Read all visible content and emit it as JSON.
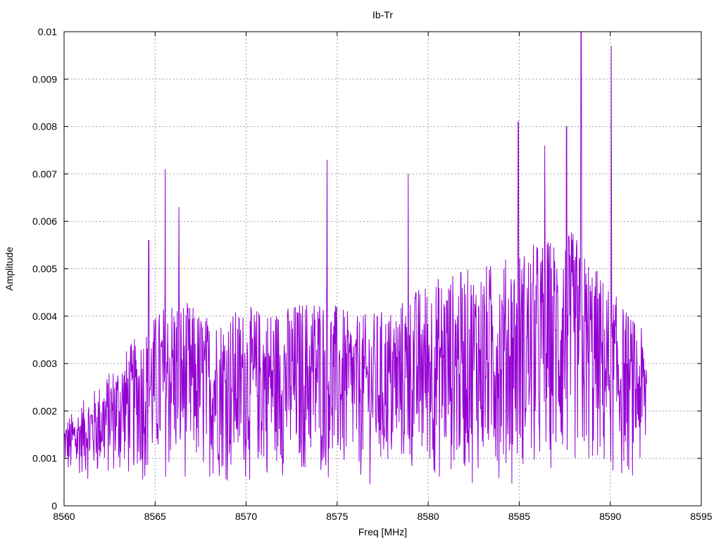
{
  "chart_data": {
    "type": "line",
    "title": "Ib-Tr",
    "xlabel": "Freq [MHz]",
    "ylabel": "Amplitude",
    "xlim": [
      8560,
      8595
    ],
    "ylim": [
      0,
      0.01
    ],
    "xticks": [
      8560,
      8565,
      8570,
      8575,
      8580,
      8585,
      8590,
      8595
    ],
    "xtick_labels": [
      "8560",
      "8565",
      "8570",
      "8575",
      "8580",
      "8585",
      "8590",
      "8595"
    ],
    "yticks": [
      0,
      0.001,
      0.002,
      0.003,
      0.004,
      0.005,
      0.006,
      0.007,
      0.008,
      0.009,
      0.01
    ],
    "ytick_labels": [
      "0",
      "0.001",
      "0.002",
      "0.003",
      "0.004",
      "0.005",
      "0.006",
      "0.007",
      "0.008",
      "0.009",
      "0.01"
    ],
    "grid": true,
    "series": [
      {
        "color": "#9400d3",
        "x_start": 8560,
        "x_end": 8592,
        "peaks": [
          {
            "x": 8564.65,
            "y": 0.0056
          },
          {
            "x": 8565.55,
            "y": 0.0071
          },
          {
            "x": 8566.3,
            "y": 0.0063
          },
          {
            "x": 8574.45,
            "y": 0.0073
          },
          {
            "x": 8578.9,
            "y": 0.007
          },
          {
            "x": 8584.95,
            "y": 0.0081
          },
          {
            "x": 8586.4,
            "y": 0.0076
          },
          {
            "x": 8587.6,
            "y": 0.008
          },
          {
            "x": 8588.4,
            "y": 0.01
          },
          {
            "x": 8590.05,
            "y": 0.0097
          }
        ],
        "envelope": [
          {
            "x": 8560,
            "y": 0.0018
          },
          {
            "x": 8562,
            "y": 0.0026
          },
          {
            "x": 8564,
            "y": 0.0036
          },
          {
            "x": 8566,
            "y": 0.0045
          },
          {
            "x": 8568,
            "y": 0.004
          },
          {
            "x": 8570,
            "y": 0.0042
          },
          {
            "x": 8572,
            "y": 0.0042
          },
          {
            "x": 8574,
            "y": 0.0045
          },
          {
            "x": 8576,
            "y": 0.004
          },
          {
            "x": 8578,
            "y": 0.0042
          },
          {
            "x": 8580,
            "y": 0.0048
          },
          {
            "x": 8582,
            "y": 0.005
          },
          {
            "x": 8584,
            "y": 0.0052
          },
          {
            "x": 8586,
            "y": 0.0056
          },
          {
            "x": 8588,
            "y": 0.0058
          },
          {
            "x": 8590,
            "y": 0.0046
          },
          {
            "x": 8592,
            "y": 0.0036
          }
        ]
      }
    ]
  }
}
